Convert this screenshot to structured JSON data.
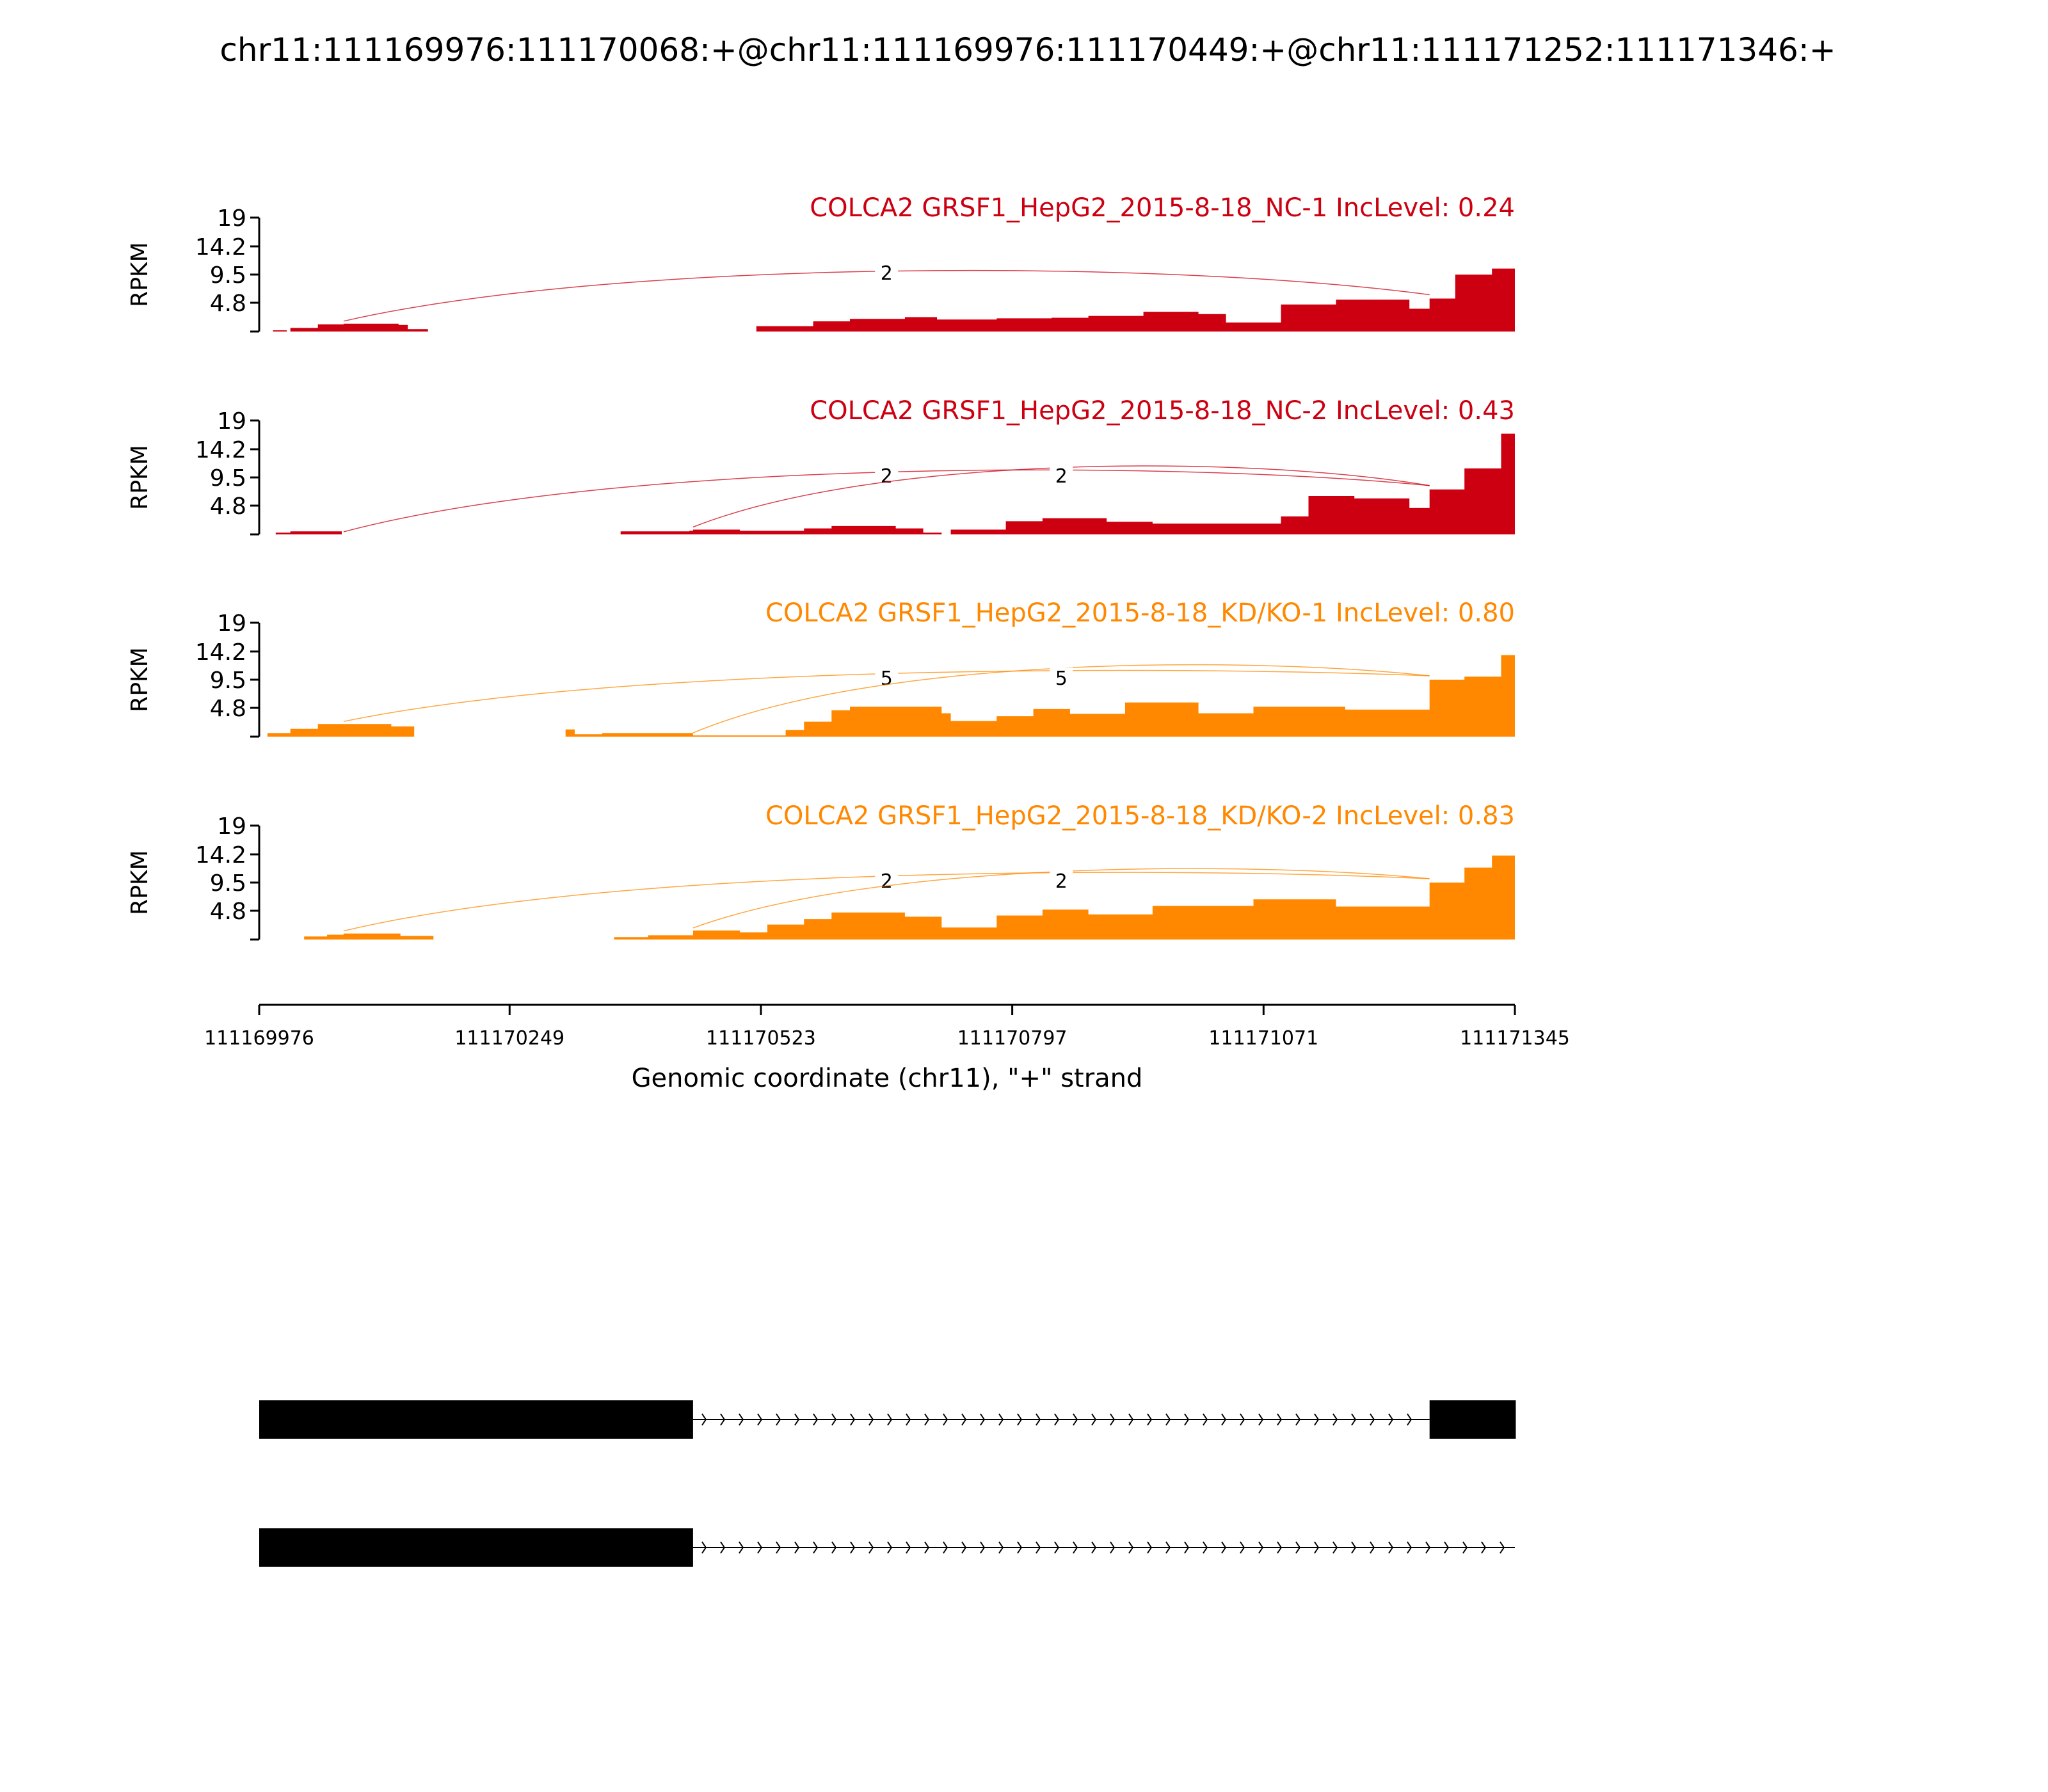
{
  "title": "chr11:111169976:111170068:+@chr11:111169976:111170449:+@chr11:111171252:111171346:+",
  "chart_data": {
    "type": "area",
    "title": "chr11:111169976:111170068:+@chr11:111169976:111170449:+@chr11:111171252:111171346:+",
    "xlabel": "Genomic coordinate (chr11), \"+\" strand",
    "ylabel": "RPKM",
    "xlim": [
      111169976,
      111171345
    ],
    "ylim": [
      0,
      19
    ],
    "x_ticks": [
      "111169976",
      "111170249",
      "111170523",
      "111170797",
      "111171071",
      "111171345"
    ],
    "y_ticks": [
      "19",
      "14.2",
      "9.5",
      "4.8"
    ],
    "grid": false,
    "series": [
      {
        "name": "COLCA2 GRSF1_HepG2_2015-8-18_NC-1 IncLevel: 0.24",
        "color": "#cc0011",
        "coverage": [
          [
            111169976,
            0
          ],
          [
            111169991,
            0
          ],
          [
            111169991,
            0.2
          ],
          [
            111170006,
            0.2
          ],
          [
            111170006,
            0
          ],
          [
            111170010,
            0
          ],
          [
            111170010,
            0.6
          ],
          [
            111170040,
            0.6
          ],
          [
            111170040,
            1.2
          ],
          [
            111170068,
            1.2
          ],
          [
            111170068,
            1.3
          ],
          [
            111170128,
            1.3
          ],
          [
            111170128,
            1.1
          ],
          [
            111170138,
            1.1
          ],
          [
            111170138,
            0.4
          ],
          [
            111170160,
            0.4
          ],
          [
            111170160,
            0
          ],
          [
            111170518,
            0
          ],
          [
            111170518,
            0.9
          ],
          [
            111170580,
            0.9
          ],
          [
            111170580,
            1.7
          ],
          [
            111170620,
            1.7
          ],
          [
            111170620,
            2.1
          ],
          [
            111170680,
            2.1
          ],
          [
            111170680,
            2.4
          ],
          [
            111170715,
            2.4
          ],
          [
            111170715,
            2.0
          ],
          [
            111170780,
            2.0
          ],
          [
            111170780,
            2.2
          ],
          [
            111170840,
            2.2
          ],
          [
            111170840,
            2.3
          ],
          [
            111170880,
            2.3
          ],
          [
            111170880,
            2.6
          ],
          [
            111170940,
            2.6
          ],
          [
            111170940,
            3.3
          ],
          [
            111171000,
            3.3
          ],
          [
            111171000,
            2.9
          ],
          [
            111171030,
            2.9
          ],
          [
            111171030,
            1.5
          ],
          [
            111171090,
            1.5
          ],
          [
            111171090,
            4.5
          ],
          [
            111171150,
            4.5
          ],
          [
            111171150,
            5.3
          ],
          [
            111171230,
            5.3
          ],
          [
            111171230,
            3.8
          ],
          [
            111171252,
            3.8
          ],
          [
            111171252,
            5.5
          ],
          [
            111171280,
            5.5
          ],
          [
            111171280,
            9.5
          ],
          [
            111171320,
            9.5
          ],
          [
            111171320,
            10.5
          ],
          [
            111171345,
            10.5
          ],
          [
            111171345,
            11.2
          ]
        ],
        "junctions": [
          {
            "from": 111170068,
            "to": 111171252,
            "count": "2"
          }
        ]
      },
      {
        "name": "COLCA2 GRSF1_HepG2_2015-8-18_NC-2 IncLevel: 0.43",
        "color": "#cc0011",
        "coverage": [
          [
            111169976,
            0
          ],
          [
            111169994,
            0
          ],
          [
            111169994,
            0.3
          ],
          [
            111170010,
            0.3
          ],
          [
            111170010,
            0.5
          ],
          [
            111170066,
            0.5
          ],
          [
            111170066,
            0
          ],
          [
            111170370,
            0
          ],
          [
            111170370,
            0.5
          ],
          [
            111170445,
            0.5
          ],
          [
            111170445,
            0.6
          ],
          [
            111170449,
            0.6
          ],
          [
            111170449,
            0.8
          ],
          [
            111170500,
            0.8
          ],
          [
            111170500,
            0.6
          ],
          [
            111170570,
            0.6
          ],
          [
            111170570,
            1.0
          ],
          [
            111170600,
            1.0
          ],
          [
            111170600,
            1.4
          ],
          [
            111170670,
            1.4
          ],
          [
            111170670,
            1.0
          ],
          [
            111170700,
            1.0
          ],
          [
            111170700,
            0.3
          ],
          [
            111170720,
            0.3
          ],
          [
            111170720,
            0
          ],
          [
            111170730,
            0
          ],
          [
            111170730,
            0.8
          ],
          [
            111170790,
            0.8
          ],
          [
            111170790,
            2.2
          ],
          [
            111170830,
            2.2
          ],
          [
            111170830,
            2.7
          ],
          [
            111170900,
            2.7
          ],
          [
            111170900,
            2.1
          ],
          [
            111170950,
            2.1
          ],
          [
            111170950,
            1.8
          ],
          [
            111171090,
            1.8
          ],
          [
            111171090,
            3.0
          ],
          [
            111171120,
            3.0
          ],
          [
            111171120,
            6.4
          ],
          [
            111171170,
            6.4
          ],
          [
            111171170,
            6.0
          ],
          [
            111171230,
            6.0
          ],
          [
            111171230,
            4.4
          ],
          [
            111171252,
            4.4
          ],
          [
            111171252,
            7.5
          ],
          [
            111171290,
            7.5
          ],
          [
            111171290,
            11.0
          ],
          [
            111171330,
            11.0
          ],
          [
            111171330,
            16.8
          ],
          [
            111171345,
            16.8
          ]
        ],
        "junctions": [
          {
            "from": 111170068,
            "to": 111171252,
            "count": "2"
          },
          {
            "from": 111170449,
            "to": 111171252,
            "count": "2"
          }
        ]
      },
      {
        "name": "COLCA2 GRSF1_HepG2_2015-8-18_KD/KO-1 IncLevel: 0.80",
        "color": "#ff8800",
        "coverage": [
          [
            111169976,
            0
          ],
          [
            111169985,
            0
          ],
          [
            111169985,
            0.6
          ],
          [
            111170010,
            0.6
          ],
          [
            111170010,
            1.3
          ],
          [
            111170040,
            1.3
          ],
          [
            111170040,
            2.1
          ],
          [
            111170068,
            2.1
          ],
          [
            111170068,
            2.1
          ],
          [
            111170120,
            2.1
          ],
          [
            111170120,
            1.7
          ],
          [
            111170145,
            1.7
          ],
          [
            111170145,
            0
          ],
          [
            111170310,
            0
          ],
          [
            111170310,
            1.2
          ],
          [
            111170320,
            1.2
          ],
          [
            111170320,
            0.4
          ],
          [
            111170350,
            0.4
          ],
          [
            111170350,
            0.6
          ],
          [
            111170449,
            0.6
          ],
          [
            111170449,
            0.2
          ],
          [
            111170550,
            0.2
          ],
          [
            111170550,
            1.1
          ],
          [
            111170570,
            1.1
          ],
          [
            111170570,
            2.5
          ],
          [
            111170600,
            2.5
          ],
          [
            111170600,
            4.4
          ],
          [
            111170620,
            4.4
          ],
          [
            111170620,
            5.0
          ],
          [
            111170720,
            5.0
          ],
          [
            111170720,
            3.9
          ],
          [
            111170730,
            3.9
          ],
          [
            111170730,
            2.6
          ],
          [
            111170780,
            2.6
          ],
          [
            111170780,
            3.4
          ],
          [
            111170820,
            3.4
          ],
          [
            111170820,
            4.6
          ],
          [
            111170860,
            4.6
          ],
          [
            111170860,
            3.8
          ],
          [
            111170920,
            3.8
          ],
          [
            111170920,
            5.7
          ],
          [
            111171000,
            5.7
          ],
          [
            111171000,
            3.9
          ],
          [
            111171060,
            3.9
          ],
          [
            111171060,
            5.0
          ],
          [
            111171160,
            5.0
          ],
          [
            111171160,
            4.5
          ],
          [
            111171252,
            4.5
          ],
          [
            111171252,
            9.5
          ],
          [
            111171290,
            9.5
          ],
          [
            111171290,
            10.0
          ],
          [
            111171330,
            10.0
          ],
          [
            111171330,
            13.6
          ],
          [
            111171345,
            13.6
          ]
        ],
        "junctions": [
          {
            "from": 111170068,
            "to": 111171252,
            "count": "5"
          },
          {
            "from": 111170449,
            "to": 111171252,
            "count": "5"
          }
        ]
      },
      {
        "name": "COLCA2 GRSF1_HepG2_2015-8-18_KD/KO-2 IncLevel: 0.83",
        "color": "#ff8800",
        "coverage": [
          [
            111169976,
            0
          ],
          [
            111170025,
            0
          ],
          [
            111170025,
            0.5
          ],
          [
            111170050,
            0.5
          ],
          [
            111170050,
            0.8
          ],
          [
            111170068,
            0.8
          ],
          [
            111170068,
            1.0
          ],
          [
            111170130,
            1.0
          ],
          [
            111170130,
            0.6
          ],
          [
            111170166,
            0.6
          ],
          [
            111170166,
            0
          ],
          [
            111170363,
            0
          ],
          [
            111170363,
            0.4
          ],
          [
            111170400,
            0.4
          ],
          [
            111170400,
            0.7
          ],
          [
            111170449,
            0.7
          ],
          [
            111170449,
            1.5
          ],
          [
            111170500,
            1.5
          ],
          [
            111170500,
            1.2
          ],
          [
            111170530,
            1.2
          ],
          [
            111170530,
            2.5
          ],
          [
            111170570,
            2.5
          ],
          [
            111170570,
            3.4
          ],
          [
            111170600,
            3.4
          ],
          [
            111170600,
            4.5
          ],
          [
            111170680,
            4.5
          ],
          [
            111170680,
            3.8
          ],
          [
            111170720,
            3.8
          ],
          [
            111170720,
            2.0
          ],
          [
            111170780,
            2.0
          ],
          [
            111170780,
            4.0
          ],
          [
            111170830,
            4.0
          ],
          [
            111170830,
            5.0
          ],
          [
            111170880,
            5.0
          ],
          [
            111170880,
            4.2
          ],
          [
            111170950,
            4.2
          ],
          [
            111170950,
            5.6
          ],
          [
            111171060,
            5.6
          ],
          [
            111171060,
            6.7
          ],
          [
            111171150,
            6.7
          ],
          [
            111171150,
            5.5
          ],
          [
            111171252,
            5.5
          ],
          [
            111171252,
            9.5
          ],
          [
            111171290,
            9.5
          ],
          [
            111171290,
            12.0
          ],
          [
            111171320,
            12.0
          ],
          [
            111171320,
            14.0
          ],
          [
            111171345,
            14.0
          ]
        ],
        "junctions": [
          {
            "from": 111170068,
            "to": 111171252,
            "count": "2"
          },
          {
            "from": 111170449,
            "to": 111171252,
            "count": "2"
          }
        ]
      }
    ],
    "isoforms": [
      {
        "exons": [
          [
            111169976,
            111170449
          ],
          [
            111171252,
            111171346
          ]
        ],
        "exon_color": "#000000"
      },
      {
        "exons": [
          [
            111169976,
            111170449
          ]
        ],
        "intron_end": 111171345,
        "exon_color": "#000000"
      }
    ]
  }
}
